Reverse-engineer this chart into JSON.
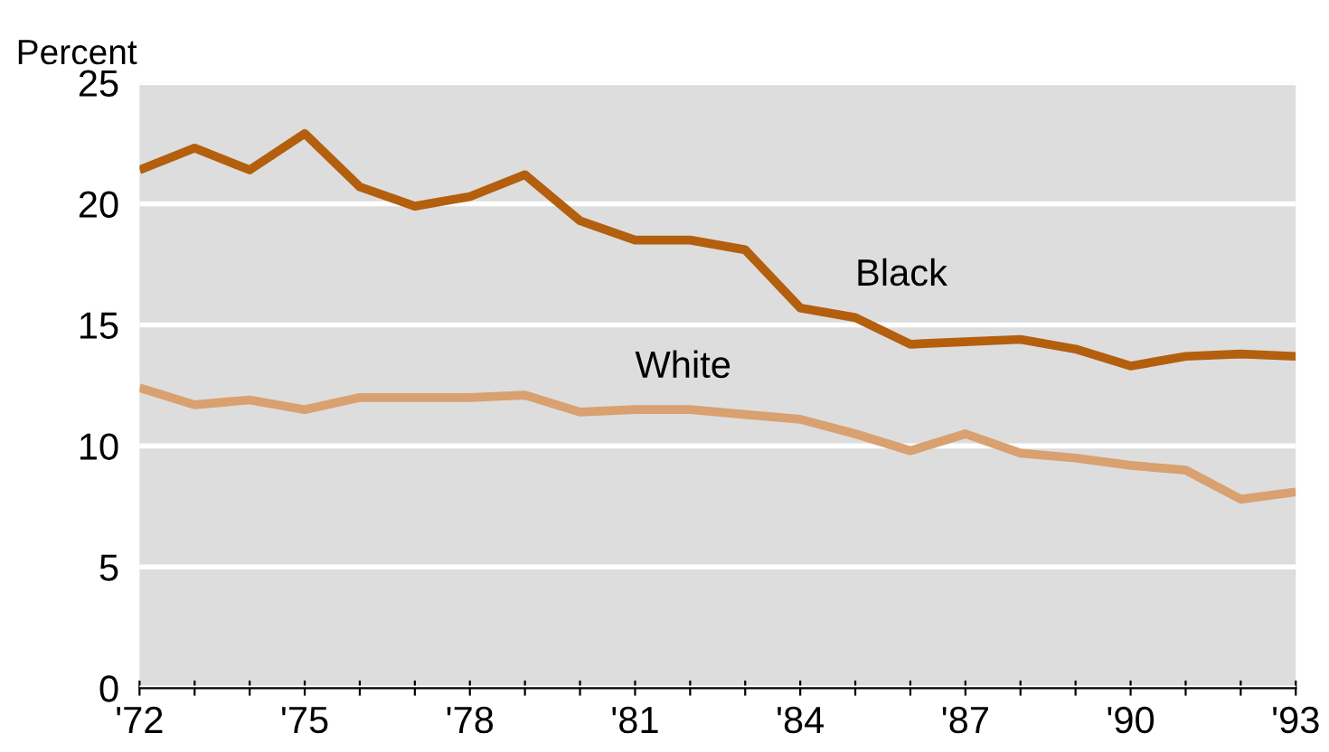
{
  "chart_data": {
    "type": "line",
    "ylabel": "Percent",
    "x": [
      1972,
      1973,
      1974,
      1975,
      1976,
      1977,
      1978,
      1979,
      1980,
      1981,
      1982,
      1983,
      1984,
      1985,
      1986,
      1987,
      1988,
      1989,
      1990,
      1991,
      1992,
      1993
    ],
    "series": [
      {
        "name": "Black",
        "color": "#b35f0e",
        "values": [
          21.4,
          22.3,
          21.4,
          22.9,
          20.7,
          19.9,
          20.3,
          21.2,
          19.3,
          18.5,
          18.5,
          18.1,
          15.7,
          15.3,
          14.2,
          14.3,
          14.4,
          14.0,
          13.3,
          13.7,
          13.8,
          13.7
        ]
      },
      {
        "name": "White",
        "color": "#d9a070",
        "values": [
          12.4,
          11.7,
          11.9,
          11.5,
          12.0,
          12.0,
          12.0,
          12.1,
          11.4,
          11.5,
          11.5,
          11.3,
          11.1,
          10.5,
          9.8,
          10.5,
          9.7,
          9.5,
          9.2,
          9.0,
          7.8,
          8.1
        ]
      }
    ],
    "xlim": [
      1972,
      1993
    ],
    "xticks": [
      {
        "value": 1972,
        "label": "'72"
      },
      {
        "value": 1973,
        "label": null
      },
      {
        "value": 1974,
        "label": null
      },
      {
        "value": 1975,
        "label": "'75"
      },
      {
        "value": 1976,
        "label": null
      },
      {
        "value": 1977,
        "label": null
      },
      {
        "value": 1978,
        "label": "'78"
      },
      {
        "value": 1979,
        "label": null
      },
      {
        "value": 1980,
        "label": null
      },
      {
        "value": 1981,
        "label": "'81"
      },
      {
        "value": 1982,
        "label": null
      },
      {
        "value": 1983,
        "label": null
      },
      {
        "value": 1984,
        "label": "'84"
      },
      {
        "value": 1985,
        "label": null
      },
      {
        "value": 1986,
        "label": null
      },
      {
        "value": 1987,
        "label": "'87"
      },
      {
        "value": 1988,
        "label": null
      },
      {
        "value": 1989,
        "label": null
      },
      {
        "value": 1990,
        "label": "'90"
      },
      {
        "value": 1991,
        "label": null
      },
      {
        "value": 1992,
        "label": null
      },
      {
        "value": 1993,
        "label": "'93"
      }
    ],
    "ylim": [
      0,
      25
    ],
    "yticks": [
      0,
      5,
      10,
      15,
      20,
      25
    ],
    "grid": "y",
    "legend": false,
    "marker": "none",
    "line_style": "solid"
  }
}
